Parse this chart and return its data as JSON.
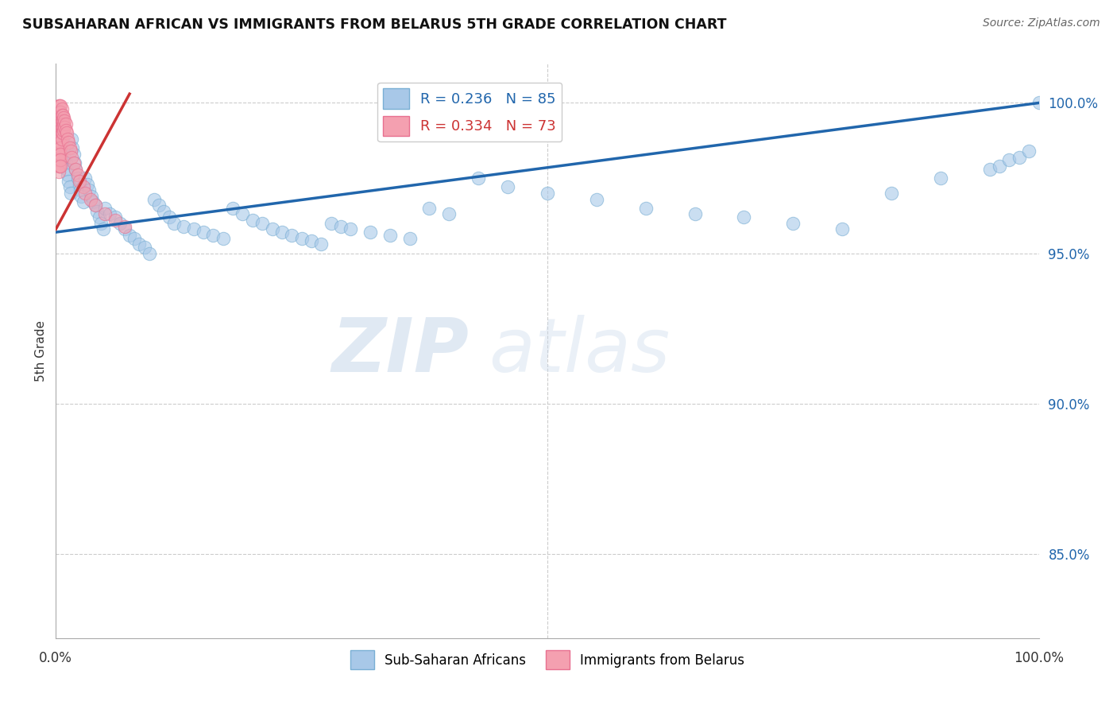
{
  "title": "SUBSAHARAN AFRICAN VS IMMIGRANTS FROM BELARUS 5TH GRADE CORRELATION CHART",
  "source": "Source: ZipAtlas.com",
  "ylabel": "5th Grade",
  "ytick_labels": [
    "100.0%",
    "95.0%",
    "90.0%",
    "85.0%"
  ],
  "ytick_positions": [
    1.0,
    0.95,
    0.9,
    0.85
  ],
  "xlim": [
    0.0,
    1.0
  ],
  "ylim": [
    0.822,
    1.013
  ],
  "legend_blue_r": "R = 0.236",
  "legend_blue_n": "N = 85",
  "legend_pink_r": "R = 0.334",
  "legend_pink_n": "N = 73",
  "blue_color": "#a8c8e8",
  "pink_color": "#f4a0b0",
  "blue_edge_color": "#7aafd4",
  "pink_edge_color": "#e87090",
  "blue_line_color": "#2166ac",
  "pink_line_color": "#cc3333",
  "watermark_zip": "ZIP",
  "watermark_atlas": "atlas",
  "blue_scatter_x": [
    0.005,
    0.007,
    0.008,
    0.009,
    0.01,
    0.011,
    0.012,
    0.013,
    0.014,
    0.015,
    0.016,
    0.017,
    0.018,
    0.019,
    0.02,
    0.022,
    0.024,
    0.025,
    0.026,
    0.028,
    0.03,
    0.032,
    0.034,
    0.036,
    0.038,
    0.04,
    0.042,
    0.044,
    0.046,
    0.048,
    0.05,
    0.055,
    0.06,
    0.065,
    0.07,
    0.075,
    0.08,
    0.085,
    0.09,
    0.095,
    0.1,
    0.105,
    0.11,
    0.115,
    0.12,
    0.13,
    0.14,
    0.15,
    0.16,
    0.17,
    0.18,
    0.19,
    0.2,
    0.21,
    0.22,
    0.23,
    0.24,
    0.25,
    0.26,
    0.27,
    0.28,
    0.29,
    0.3,
    0.32,
    0.34,
    0.36,
    0.38,
    0.4,
    0.43,
    0.46,
    0.5,
    0.55,
    0.6,
    0.65,
    0.7,
    0.75,
    0.8,
    0.85,
    0.9,
    0.95,
    0.96,
    0.97,
    0.98,
    0.99,
    1.0
  ],
  "blue_scatter_y": [
    0.99,
    0.988,
    0.985,
    0.982,
    0.98,
    0.978,
    0.976,
    0.974,
    0.972,
    0.97,
    0.988,
    0.985,
    0.983,
    0.98,
    0.978,
    0.975,
    0.973,
    0.971,
    0.969,
    0.967,
    0.975,
    0.973,
    0.971,
    0.969,
    0.967,
    0.966,
    0.964,
    0.962,
    0.96,
    0.958,
    0.965,
    0.963,
    0.962,
    0.96,
    0.958,
    0.956,
    0.955,
    0.953,
    0.952,
    0.95,
    0.968,
    0.966,
    0.964,
    0.962,
    0.96,
    0.959,
    0.958,
    0.957,
    0.956,
    0.955,
    0.965,
    0.963,
    0.961,
    0.96,
    0.958,
    0.957,
    0.956,
    0.955,
    0.954,
    0.953,
    0.96,
    0.959,
    0.958,
    0.957,
    0.956,
    0.955,
    0.965,
    0.963,
    0.975,
    0.972,
    0.97,
    0.968,
    0.965,
    0.963,
    0.962,
    0.96,
    0.958,
    0.97,
    0.975,
    0.978,
    0.979,
    0.981,
    0.982,
    0.984,
    1.0
  ],
  "pink_scatter_x": [
    0.002,
    0.002,
    0.002,
    0.002,
    0.002,
    0.003,
    0.003,
    0.003,
    0.003,
    0.003,
    0.003,
    0.003,
    0.003,
    0.003,
    0.003,
    0.003,
    0.003,
    0.004,
    0.004,
    0.004,
    0.004,
    0.004,
    0.004,
    0.004,
    0.004,
    0.004,
    0.004,
    0.004,
    0.005,
    0.005,
    0.005,
    0.005,
    0.005,
    0.005,
    0.005,
    0.005,
    0.005,
    0.005,
    0.005,
    0.006,
    0.006,
    0.006,
    0.006,
    0.006,
    0.006,
    0.007,
    0.007,
    0.007,
    0.007,
    0.008,
    0.008,
    0.008,
    0.009,
    0.009,
    0.01,
    0.01,
    0.011,
    0.012,
    0.013,
    0.014,
    0.015,
    0.016,
    0.018,
    0.02,
    0.022,
    0.024,
    0.028,
    0.03,
    0.035,
    0.04,
    0.05,
    0.06,
    0.07
  ],
  "pink_scatter_y": [
    0.998,
    0.996,
    0.994,
    0.992,
    0.99,
    0.999,
    0.997,
    0.995,
    0.993,
    0.991,
    0.989,
    0.987,
    0.985,
    0.983,
    0.981,
    0.979,
    0.977,
    0.999,
    0.997,
    0.995,
    0.993,
    0.991,
    0.989,
    0.987,
    0.985,
    0.983,
    0.981,
    0.979,
    0.999,
    0.997,
    0.995,
    0.993,
    0.991,
    0.989,
    0.987,
    0.985,
    0.983,
    0.981,
    0.979,
    0.998,
    0.996,
    0.994,
    0.992,
    0.99,
    0.988,
    0.996,
    0.994,
    0.992,
    0.99,
    0.995,
    0.993,
    0.991,
    0.994,
    0.992,
    0.993,
    0.991,
    0.99,
    0.988,
    0.987,
    0.985,
    0.984,
    0.982,
    0.98,
    0.978,
    0.976,
    0.974,
    0.972,
    0.97,
    0.968,
    0.966,
    0.963,
    0.961,
    0.959
  ],
  "blue_line_x0": 0.0,
  "blue_line_x1": 1.0,
  "blue_line_y0": 0.957,
  "blue_line_y1": 1.0,
  "pink_line_x0": 0.0,
  "pink_line_x1": 0.075,
  "pink_line_y0": 0.958,
  "pink_line_y1": 1.003
}
